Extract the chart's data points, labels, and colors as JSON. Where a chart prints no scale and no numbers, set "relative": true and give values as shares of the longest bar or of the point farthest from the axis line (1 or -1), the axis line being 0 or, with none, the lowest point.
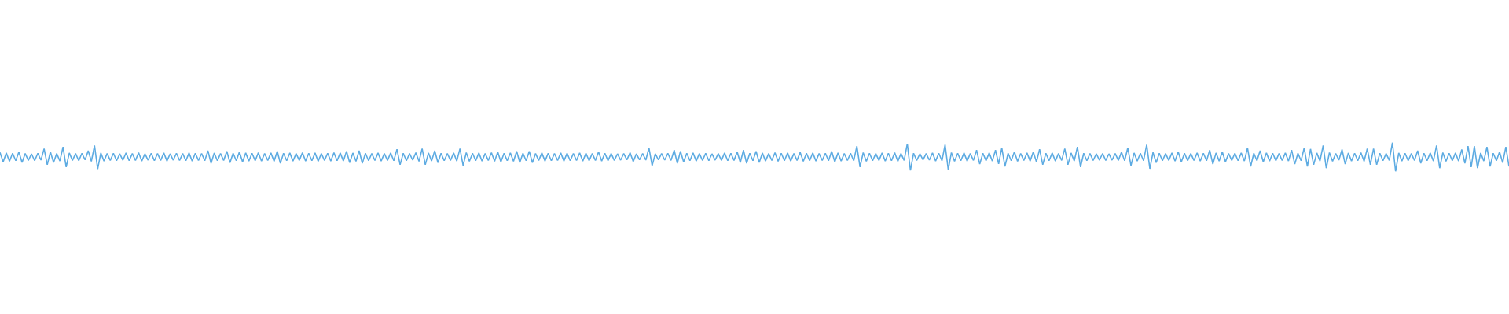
{
  "chart_data": {
    "type": "line",
    "relative": true,
    "color": "#5dabe2",
    "categories": [
      null,
      null,
      null,
      null,
      null,
      null,
      null,
      null,
      null,
      null,
      null,
      null,
      null,
      null,
      null,
      null,
      null,
      null,
      null,
      null,
      null,
      null,
      null,
      null,
      null,
      null,
      null,
      null,
      null,
      null,
      null,
      null,
      null,
      null,
      null,
      null,
      null,
      null,
      null,
      null,
      null,
      null,
      null,
      null,
      null,
      null,
      null,
      null,
      null,
      null,
      null,
      null,
      null,
      null,
      null,
      null,
      null,
      null,
      null,
      null,
      null,
      null,
      null,
      null,
      null,
      null,
      null,
      null,
      null,
      null,
      null,
      null,
      null,
      null,
      null,
      null,
      null,
      null,
      null,
      null,
      null,
      null,
      null,
      null,
      null,
      null,
      null,
      null,
      null,
      null,
      null,
      null,
      null,
      null,
      null,
      null,
      null,
      null,
      null,
      null,
      null,
      null,
      null,
      null,
      null,
      null,
      null,
      null,
      null,
      null,
      null,
      null,
      null,
      null,
      null,
      null,
      null,
      null,
      null,
      null,
      null,
      null,
      null,
      null,
      null,
      null,
      null,
      null,
      null,
      null,
      null,
      null,
      null,
      null,
      null,
      null,
      null,
      null,
      null,
      null,
      null,
      null,
      null,
      null,
      null,
      null,
      null,
      null,
      null,
      null,
      null,
      null,
      null,
      null,
      null,
      null,
      null,
      null,
      null,
      null,
      null,
      null,
      null,
      null,
      null,
      null,
      null,
      null,
      null,
      null,
      null,
      null,
      null,
      null,
      null,
      null,
      null,
      null,
      null,
      null,
      null,
      null,
      null,
      null,
      null,
      null,
      null,
      null,
      null,
      null,
      null,
      null,
      null,
      null,
      null,
      null,
      null,
      null,
      null,
      null,
      null,
      null,
      null,
      null,
      null,
      null,
      null,
      null,
      null,
      null,
      null,
      null,
      null,
      null,
      null,
      null,
      null,
      null,
      null,
      null,
      null,
      null,
      null,
      null,
      null,
      null,
      null,
      null,
      null,
      null,
      null,
      null,
      null,
      null,
      null,
      null,
      null,
      null,
      null,
      null,
      null,
      null,
      null,
      null,
      null,
      null,
      null,
      null,
      null,
      null,
      null,
      null,
      null,
      null,
      null,
      null,
      null,
      null,
      null,
      null,
      null,
      null,
      null,
      null,
      null,
      null,
      null,
      null,
      null,
      null,
      null,
      null,
      null,
      null,
      null,
      null,
      null,
      null,
      null,
      null,
      null,
      null,
      null,
      null,
      null,
      null,
      null,
      null,
      null,
      null,
      null,
      null,
      null,
      null,
      null,
      null,
      null,
      null,
      null,
      null,
      null,
      null,
      null,
      null,
      null,
      null,
      null,
      null,
      null,
      null,
      null,
      null,
      null,
      null,
      null,
      null,
      null,
      null,
      null,
      null,
      null,
      null,
      null,
      null,
      null,
      null,
      null,
      null,
      null,
      null,
      null,
      null,
      null,
      null,
      null,
      null,
      null,
      null,
      null,
      null,
      null,
      null,
      null,
      null,
      null,
      null,
      null,
      null,
      null,
      null,
      null,
      null,
      null,
      null,
      null,
      null,
      null,
      null,
      null,
      null,
      null,
      null,
      null,
      null,
      null,
      null,
      null,
      null,
      null,
      null,
      null,
      null,
      null,
      null,
      null,
      null,
      null,
      null,
      null,
      null,
      null,
      null,
      null,
      null,
      null,
      null,
      null,
      null,
      null,
      null,
      null,
      null,
      null,
      null,
      null,
      null,
      null,
      null,
      null,
      null,
      null,
      null,
      null,
      null,
      null,
      null,
      null,
      null,
      null,
      null,
      null,
      null,
      null,
      null,
      null,
      null,
      null,
      null,
      null,
      null,
      null,
      null,
      null,
      null,
      null,
      null,
      null,
      null,
      null,
      null,
      null,
      null,
      null,
      null,
      null,
      null,
      null,
      null,
      null,
      null,
      null,
      null,
      null,
      null,
      null,
      null,
      null,
      null,
      null,
      null,
      null,
      null,
      null,
      null,
      null,
      null,
      null,
      null,
      null,
      null,
      null,
      null,
      null,
      null,
      null,
      null,
      null,
      null,
      null,
      null,
      null,
      null,
      null,
      null,
      null,
      null,
      null,
      null,
      null,
      null
    ],
    "values": [
      0.66,
      0.33,
      0.64,
      0.35,
      0.63,
      0.37,
      0.68,
      0.31,
      0.62,
      0.38,
      0.61,
      0.37,
      0.63,
      0.39,
      0.79,
      0.23,
      0.68,
      0.31,
      0.62,
      0.36,
      0.85,
      0.15,
      0.64,
      0.38,
      0.62,
      0.37,
      0.63,
      0.4,
      0.72,
      0.35,
      0.9,
      0.08,
      0.64,
      0.36,
      0.62,
      0.38,
      0.63,
      0.37,
      0.61,
      0.39,
      0.64,
      0.37,
      0.62,
      0.38,
      0.65,
      0.36,
      0.61,
      0.39,
      0.63,
      0.37,
      0.62,
      0.38,
      0.64,
      0.36,
      0.61,
      0.39,
      0.63,
      0.38,
      0.62,
      0.37,
      0.64,
      0.36,
      0.63,
      0.38,
      0.62,
      0.37,
      0.72,
      0.28,
      0.64,
      0.37,
      0.62,
      0.38,
      0.7,
      0.3,
      0.63,
      0.37,
      0.68,
      0.33,
      0.64,
      0.36,
      0.63,
      0.37,
      0.65,
      0.36,
      0.62,
      0.38,
      0.64,
      0.35,
      0.7,
      0.28,
      0.63,
      0.37,
      0.64,
      0.36,
      0.62,
      0.38,
      0.65,
      0.36,
      0.63,
      0.37,
      0.64,
      0.35,
      0.62,
      0.38,
      0.63,
      0.36,
      0.65,
      0.37,
      0.64,
      0.36,
      0.7,
      0.3,
      0.64,
      0.35,
      0.72,
      0.28,
      0.63,
      0.37,
      0.62,
      0.38,
      0.64,
      0.36,
      0.62,
      0.38,
      0.64,
      0.37,
      0.77,
      0.23,
      0.63,
      0.37,
      0.62,
      0.39,
      0.65,
      0.35,
      0.79,
      0.23,
      0.64,
      0.36,
      0.72,
      0.3,
      0.63,
      0.37,
      0.62,
      0.38,
      0.64,
      0.36,
      0.79,
      0.2,
      0.65,
      0.35,
      0.63,
      0.37,
      0.64,
      0.36,
      0.62,
      0.38,
      0.65,
      0.35,
      0.68,
      0.33,
      0.63,
      0.37,
      0.64,
      0.35,
      0.7,
      0.31,
      0.63,
      0.37,
      0.7,
      0.3,
      0.62,
      0.38,
      0.64,
      0.36,
      0.63,
      0.37,
      0.62,
      0.38,
      0.64,
      0.36,
      0.63,
      0.37,
      0.62,
      0.38,
      0.64,
      0.36,
      0.63,
      0.37,
      0.62,
      0.38,
      0.68,
      0.36,
      0.63,
      0.37,
      0.62,
      0.38,
      0.61,
      0.39,
      0.62,
      0.4,
      0.65,
      0.34,
      0.61,
      0.4,
      0.62,
      0.39,
      0.82,
      0.2,
      0.61,
      0.4,
      0.62,
      0.39,
      0.63,
      0.38,
      0.74,
      0.28,
      0.7,
      0.33,
      0.63,
      0.37,
      0.64,
      0.36,
      0.62,
      0.38,
      0.63,
      0.37,
      0.61,
      0.39,
      0.62,
      0.38,
      0.64,
      0.37,
      0.63,
      0.38,
      0.68,
      0.31,
      0.74,
      0.28,
      0.63,
      0.37,
      0.7,
      0.31,
      0.64,
      0.36,
      0.62,
      0.38,
      0.65,
      0.35,
      0.63,
      0.37,
      0.64,
      0.36,
      0.62,
      0.38,
      0.66,
      0.35,
      0.63,
      0.37,
      0.64,
      0.36,
      0.62,
      0.38,
      0.63,
      0.37,
      0.7,
      0.33,
      0.64,
      0.36,
      0.62,
      0.38,
      0.63,
      0.37,
      0.88,
      0.15,
      0.65,
      0.35,
      0.63,
      0.37,
      0.62,
      0.38,
      0.64,
      0.36,
      0.63,
      0.37,
      0.65,
      0.35,
      0.62,
      0.38,
      0.96,
      0.03,
      0.63,
      0.38,
      0.61,
      0.4,
      0.62,
      0.39,
      0.64,
      0.36,
      0.63,
      0.37,
      0.93,
      0.06,
      0.65,
      0.35,
      0.63,
      0.37,
      0.64,
      0.36,
      0.62,
      0.38,
      0.74,
      0.25,
      0.63,
      0.37,
      0.64,
      0.36,
      0.74,
      0.26,
      0.82,
      0.17,
      0.63,
      0.37,
      0.68,
      0.35,
      0.62,
      0.38,
      0.64,
      0.36,
      0.68,
      0.33,
      0.77,
      0.23,
      0.63,
      0.37,
      0.64,
      0.36,
      0.62,
      0.38,
      0.79,
      0.23,
      0.64,
      0.36,
      0.85,
      0.15,
      0.63,
      0.37,
      0.62,
      0.38,
      0.61,
      0.39,
      0.62,
      0.38,
      0.61,
      0.39,
      0.62,
      0.38,
      0.67,
      0.37,
      0.82,
      0.2,
      0.64,
      0.36,
      0.63,
      0.37,
      0.93,
      0.09,
      0.66,
      0.3,
      0.63,
      0.37,
      0.62,
      0.38,
      0.64,
      0.36,
      0.68,
      0.33,
      0.63,
      0.37,
      0.62,
      0.38,
      0.64,
      0.36,
      0.63,
      0.37,
      0.74,
      0.25,
      0.64,
      0.36,
      0.68,
      0.33,
      0.62,
      0.38,
      0.63,
      0.37,
      0.64,
      0.36,
      0.82,
      0.17,
      0.63,
      0.37,
      0.72,
      0.33,
      0.64,
      0.36,
      0.63,
      0.37,
      0.62,
      0.38,
      0.64,
      0.36,
      0.74,
      0.25,
      0.63,
      0.37,
      0.82,
      0.17,
      0.78,
      0.23,
      0.64,
      0.36,
      0.9,
      0.11,
      0.65,
      0.35,
      0.62,
      0.39,
      0.76,
      0.25,
      0.64,
      0.36,
      0.63,
      0.37,
      0.65,
      0.35,
      0.79,
      0.23,
      0.79,
      0.23,
      0.63,
      0.37,
      0.62,
      0.38,
      1,
      0,
      0.64,
      0.36,
      0.63,
      0.37,
      0.62,
      0.38,
      0.72,
      0.28,
      0.63,
      0.37,
      0.64,
      0.36,
      0.9,
      0.11,
      0.65,
      0.35,
      0.63,
      0.37,
      0.64,
      0.36,
      0.76,
      0.28,
      0.88,
      0.15,
      0.88,
      0.11,
      0.64,
      0.36,
      0.85,
      0.17,
      0.63,
      0.37,
      0.68,
      0.3,
      0.85,
      0.17
    ]
  }
}
